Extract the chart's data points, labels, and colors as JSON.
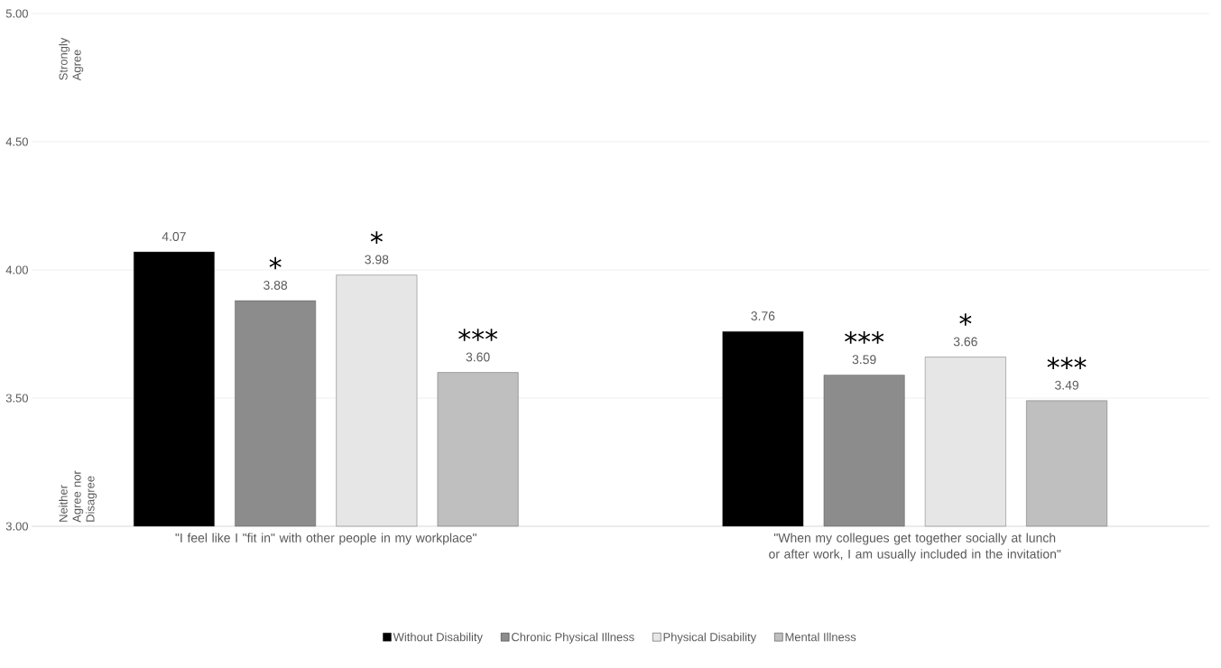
{
  "chart_data": {
    "type": "bar",
    "categories": [
      "\"I feel like I \"fit in\" with other people in my workplace\"",
      "\"When my collegues get together socially at lunch or after work, I am usually included in the invitation\""
    ],
    "series": [
      {
        "name": "Without Disability",
        "color": "#000000",
        "values": [
          4.07,
          3.76
        ],
        "value_labels": [
          "4.07",
          "3.76"
        ]
      },
      {
        "name": "Chronic Physical Illness",
        "color": "#8c8c8c",
        "values": [
          3.88,
          3.59
        ],
        "value_labels": [
          "3.88",
          "3.59"
        ]
      },
      {
        "name": "Physical Disability",
        "color": "#e6e6e6",
        "values": [
          3.98,
          3.66
        ],
        "value_labels": [
          "3.98",
          "3.66"
        ]
      },
      {
        "name": "Mental Illness",
        "color": "#bfbfbf",
        "values": [
          3.6,
          3.49
        ],
        "value_labels": [
          "3.60",
          "3.49"
        ]
      }
    ],
    "ylim": [
      3,
      5
    ],
    "yticks": [
      {
        "value": 3,
        "label": "3.00"
      },
      {
        "value": 3.5,
        "label": "3.50"
      },
      {
        "value": 4,
        "label": "4.00"
      },
      {
        "value": 4.5,
        "label": "4.50"
      },
      {
        "value": 5,
        "label": "5.00"
      }
    ],
    "grid": "y",
    "legend": "bottom",
    "annotations": [
      "*",
      "*",
      "***",
      "***",
      "*",
      "***",
      "Strongly Agree",
      "Neither Agree nor Disagree"
    ]
  }
}
